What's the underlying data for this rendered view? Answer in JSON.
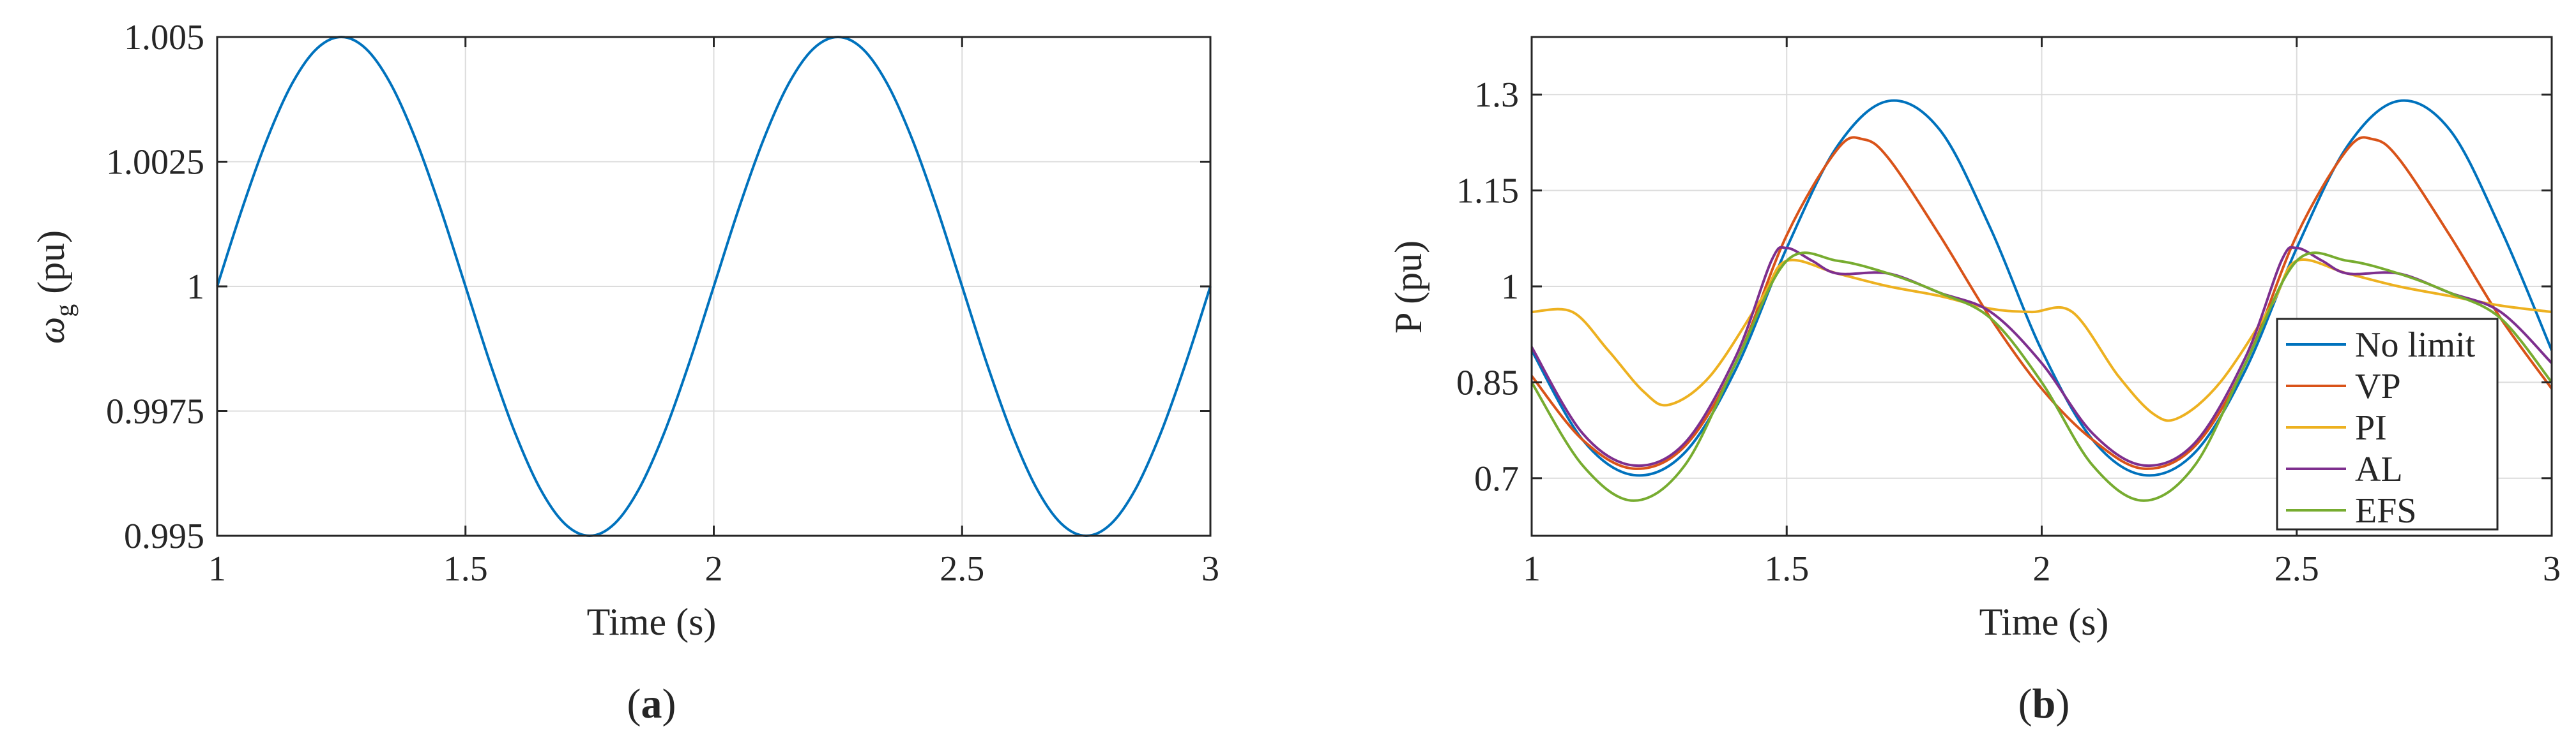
{
  "panels": [
    {
      "label_open": "(",
      "label_letter": "a",
      "label_close": ")"
    },
    {
      "label_open": "(",
      "label_letter": "b",
      "label_close": ")"
    }
  ],
  "chart_data": [
    {
      "type": "line",
      "xlabel": "Time (s)",
      "ylabel": {
        "symbol": "ω",
        "subscript": "g",
        "unit": "(pu)"
      },
      "xlim": [
        1,
        3
      ],
      "ylim": [
        0.995,
        1.005
      ],
      "x_ticks": [
        1,
        1.5,
        2,
        2.5,
        3
      ],
      "x_tick_labels": [
        "1",
        "1.5",
        "2",
        "2.5",
        "3"
      ],
      "y_ticks": [
        0.995,
        0.9975,
        1,
        1.0025,
        1.005
      ],
      "y_tick_labels": [
        "0.995",
        "0.9975",
        "1",
        "1.0025",
        "1.005"
      ],
      "grid": true,
      "colors": {
        "line": "#0072BD",
        "grid": "#dcdcdc",
        "axis": "#262626"
      },
      "series": [
        {
          "color": "#0072BD",
          "x": [
            1.0,
            1.05,
            1.1,
            1.15,
            1.2,
            1.25,
            1.3,
            1.35,
            1.4,
            1.45,
            1.5,
            1.55,
            1.6,
            1.65,
            1.7,
            1.75,
            1.8,
            1.85,
            1.9,
            1.95,
            2.0,
            2.05,
            2.1,
            2.15,
            2.2,
            2.25,
            2.3,
            2.35,
            2.4,
            2.45,
            2.5,
            2.55,
            2.6,
            2.65,
            2.7,
            2.75,
            2.8,
            2.85,
            2.9,
            2.95,
            3.0
          ],
          "y": [
            1.0,
            1.00155,
            1.00294,
            1.00405,
            1.00476,
            1.005,
            1.00476,
            1.00405,
            1.00294,
            1.00155,
            1.0,
            0.99845,
            0.99706,
            0.99595,
            0.99524,
            0.995,
            0.99524,
            0.99595,
            0.99706,
            0.99845,
            1.0,
            1.00155,
            1.00294,
            1.00405,
            1.00476,
            1.005,
            1.00476,
            1.00405,
            1.00294,
            1.00155,
            1.0,
            0.99845,
            0.99706,
            0.99595,
            0.99524,
            0.995,
            0.99524,
            0.99595,
            0.99706,
            0.99845,
            1.0
          ]
        }
      ]
    },
    {
      "type": "line",
      "xlabel": "Time (s)",
      "ylabel": "P (pu)",
      "xlim": [
        1,
        3
      ],
      "ylim": [
        0.61,
        1.39
      ],
      "x_ticks": [
        1,
        1.5,
        2,
        2.5,
        3
      ],
      "x_tick_labels": [
        "1",
        "1.5",
        "2",
        "2.5",
        "3"
      ],
      "y_ticks": [
        0.7,
        0.85,
        1,
        1.15,
        1.3
      ],
      "y_tick_labels": [
        "0.7",
        "0.85",
        "1",
        "1.15",
        "1.3"
      ],
      "grid": true,
      "legend_position": "bottom-right",
      "colors": {
        "grid": "#dcdcdc",
        "axis": "#262626"
      },
      "series": [
        {
          "name": "No limit",
          "color": "#0072BD",
          "x": [
            1.0,
            1.1,
            1.2,
            1.3,
            1.4,
            1.5,
            1.6,
            1.7,
            1.8,
            1.9,
            2.0,
            2.1,
            2.2,
            2.3,
            2.4,
            2.5,
            2.6,
            2.7,
            2.8,
            2.9,
            3.0
          ],
          "y": [
            0.9,
            0.76,
            0.705,
            0.74,
            0.87,
            1.06,
            1.22,
            1.29,
            1.245,
            1.09,
            0.9,
            0.76,
            0.705,
            0.74,
            0.87,
            1.06,
            1.22,
            1.29,
            1.245,
            1.09,
            0.9
          ]
        },
        {
          "name": "VP",
          "color": "#D95319",
          "x": [
            1.0,
            1.1,
            1.2,
            1.3,
            1.4,
            1.5,
            1.6,
            1.65,
            1.7,
            1.8,
            1.9,
            2.0,
            2.1,
            2.2,
            2.3,
            2.4,
            2.5,
            2.6,
            2.65,
            2.7,
            2.8,
            2.9,
            3.0
          ],
          "y": [
            0.86,
            0.76,
            0.715,
            0.75,
            0.88,
            1.08,
            1.215,
            1.23,
            1.2,
            1.08,
            0.95,
            0.84,
            0.76,
            0.715,
            0.75,
            0.88,
            1.08,
            1.215,
            1.23,
            1.2,
            1.08,
            0.95,
            0.84
          ]
        },
        {
          "name": "PI",
          "color": "#EDB120",
          "x": [
            1.0,
            1.08,
            1.15,
            1.22,
            1.27,
            1.35,
            1.45,
            1.5,
            1.6,
            1.7,
            1.8,
            1.9,
            1.98,
            2.06,
            2.15,
            2.22,
            2.27,
            2.35,
            2.45,
            2.5,
            2.6,
            2.7,
            2.8,
            2.9,
            3.0
          ],
          "y": [
            0.96,
            0.96,
            0.9,
            0.835,
            0.815,
            0.86,
            0.98,
            1.04,
            1.02,
            1.0,
            0.985,
            0.965,
            0.96,
            0.96,
            0.86,
            0.8,
            0.795,
            0.85,
            0.97,
            1.04,
            1.02,
            1.0,
            0.985,
            0.97,
            0.96
          ]
        },
        {
          "name": "AL",
          "color": "#7E2F8E",
          "x": [
            1.0,
            1.1,
            1.2,
            1.3,
            1.4,
            1.47,
            1.5,
            1.55,
            1.6,
            1.7,
            1.8,
            1.9,
            2.0,
            2.1,
            2.2,
            2.3,
            2.4,
            2.47,
            2.5,
            2.55,
            2.6,
            2.7,
            2.8,
            2.9,
            3.0
          ],
          "y": [
            0.905,
            0.77,
            0.72,
            0.755,
            0.89,
            1.04,
            1.06,
            1.04,
            1.02,
            1.02,
            0.99,
            0.96,
            0.88,
            0.77,
            0.72,
            0.755,
            0.89,
            1.04,
            1.06,
            1.04,
            1.02,
            1.02,
            0.99,
            0.96,
            0.88
          ]
        },
        {
          "name": "EFS",
          "color": "#77AC30",
          "x": [
            1.0,
            1.1,
            1.2,
            1.3,
            1.4,
            1.5,
            1.6,
            1.7,
            1.8,
            1.9,
            2.0,
            2.1,
            2.2,
            2.3,
            2.4,
            2.5,
            2.6,
            2.7,
            2.8,
            2.9,
            3.0
          ],
          "y": [
            0.85,
            0.72,
            0.665,
            0.72,
            0.88,
            1.04,
            1.04,
            1.02,
            0.99,
            0.95,
            0.85,
            0.72,
            0.665,
            0.72,
            0.88,
            1.04,
            1.04,
            1.02,
            0.99,
            0.95,
            0.85
          ]
        }
      ]
    }
  ]
}
